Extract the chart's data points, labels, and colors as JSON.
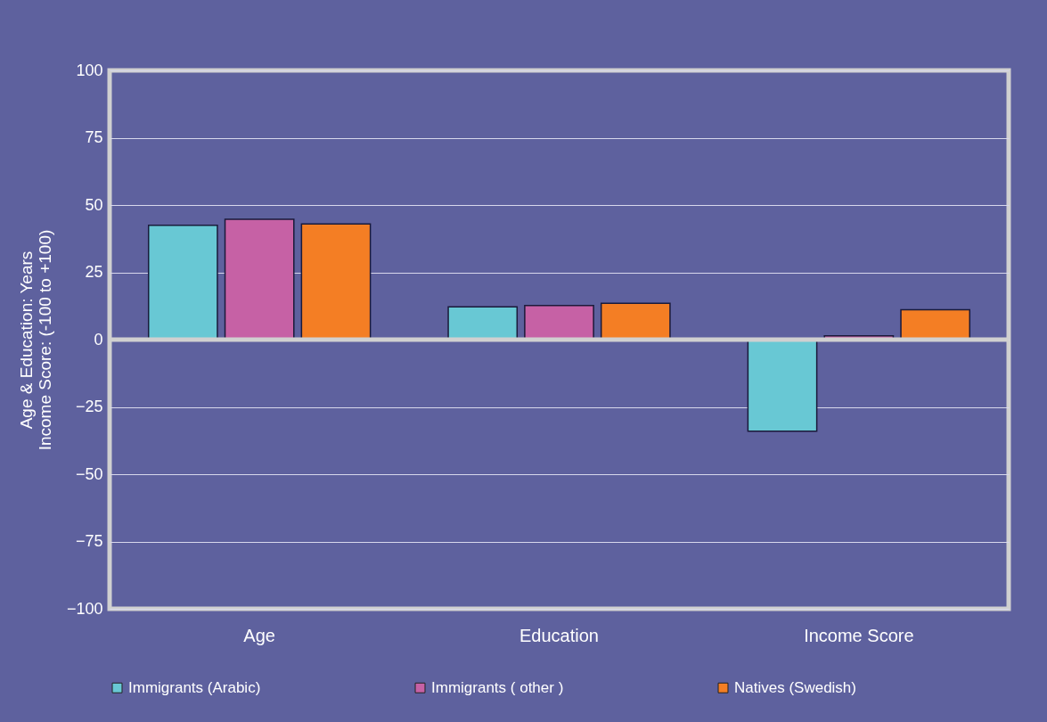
{
  "chart_data": {
    "type": "bar",
    "ylabel": "Age & Education: Years\nIncome Score: (-100 to +100)",
    "categories": [
      "Age",
      "Education",
      "Income Score"
    ],
    "series": [
      {
        "name": "Immigrants (Arabic)",
        "color": "#68c8d4",
        "values": [
          42.5,
          12.2,
          -34
        ]
      },
      {
        "name": "Immigrants ( other )",
        "color": "#c661a5",
        "values": [
          44.7,
          12.7,
          1.4
        ]
      },
      {
        "name": "Natives (Swedish)",
        "color": "#f47e24",
        "values": [
          43,
          13.5,
          11.1
        ]
      }
    ],
    "ylim": [
      -100,
      100
    ],
    "yticks": [
      -100,
      -75,
      -50,
      -25,
      0,
      25,
      50,
      75,
      100
    ],
    "grid": "y",
    "legend": "bottom"
  }
}
